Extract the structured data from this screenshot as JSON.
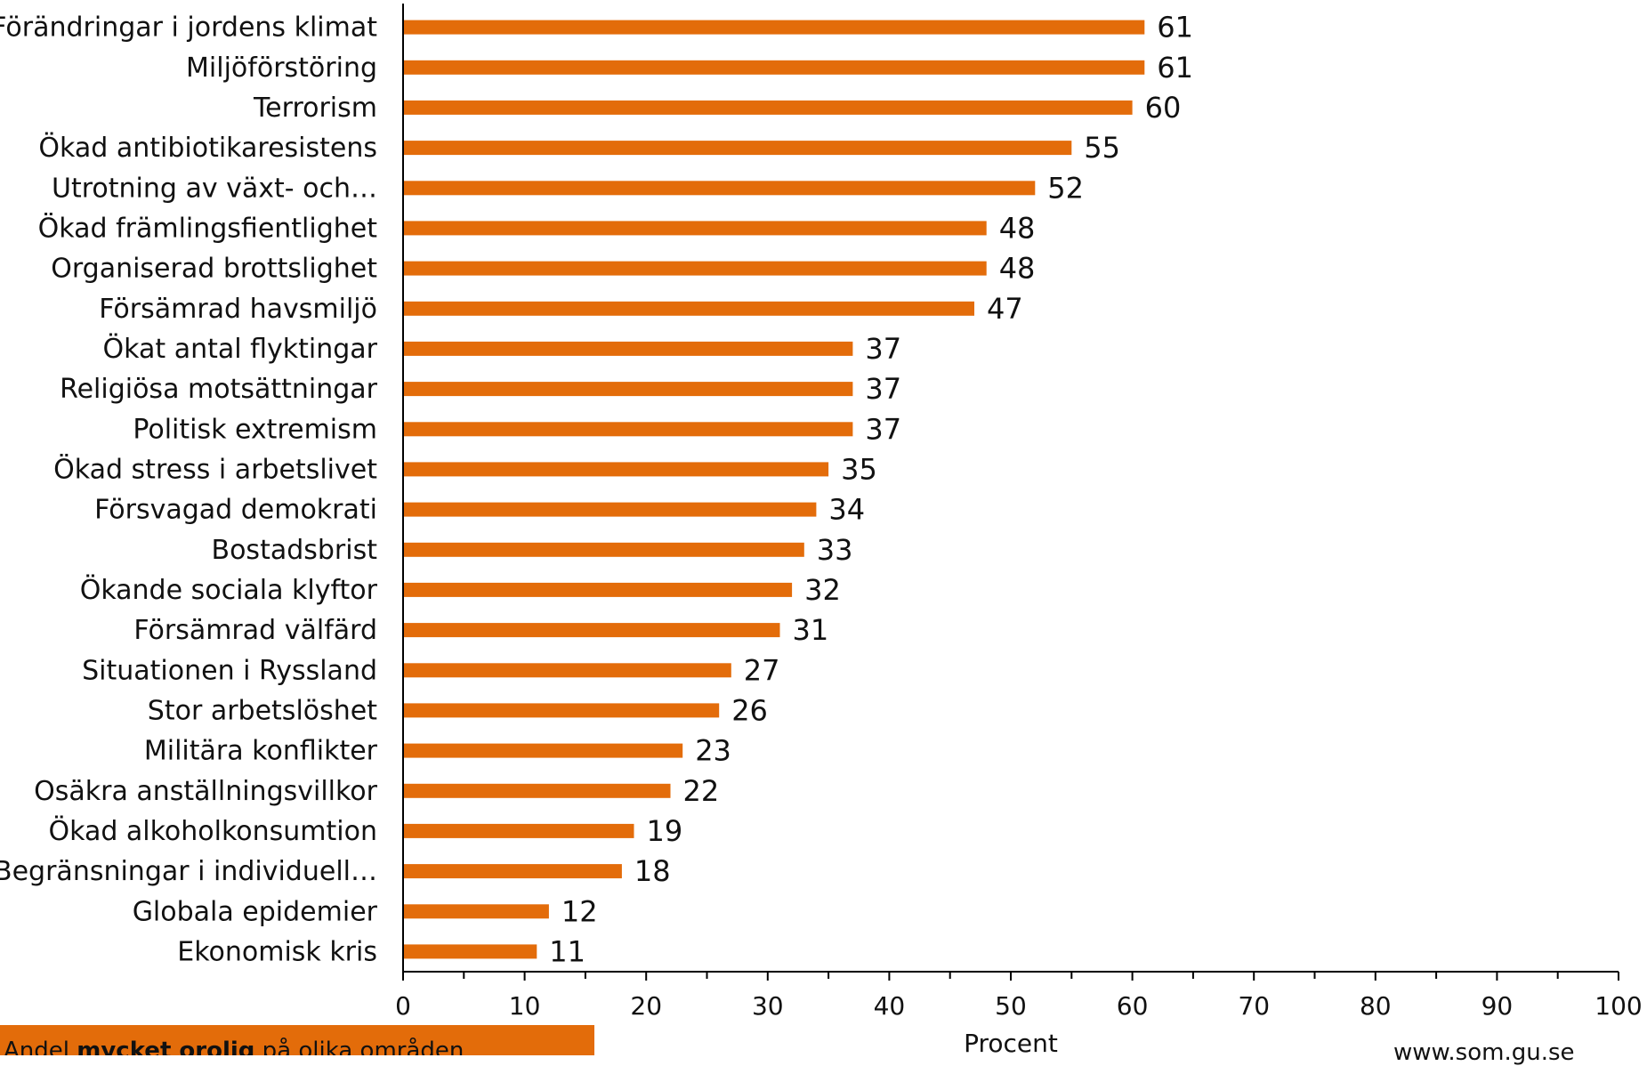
{
  "chart_data": {
    "type": "bar",
    "orientation": "horizontal",
    "categories": [
      "Förändringar i jordens klimat",
      "Miljöförstöring",
      "Terrorism",
      "Ökad antibiotikaresistens",
      "Utrotning av  växt- och…",
      "Ökad främlingsfientlighet",
      "Organiserad brottslighet",
      "Försämrad havsmiljö",
      "Ökat antal flyktingar",
      "Religiösa motsättningar",
      "Politisk extremism",
      "Ökad stress i arbetslivet",
      "Försvagad demokrati",
      "Bostadsbrist",
      "Ökande sociala klyftor",
      "Försämrad välfärd",
      "Situationen i Ryssland",
      "Stor arbetslöshet",
      "Militära konflikter",
      "Osäkra anställningsvillkor",
      "Ökad alkoholkonsumtion",
      "Begränsningar i individuell…",
      "Globala epidemier",
      "Ekonomisk kris"
    ],
    "values": [
      61,
      61,
      60,
      55,
      52,
      48,
      48,
      47,
      37,
      37,
      37,
      35,
      34,
      33,
      32,
      31,
      27,
      26,
      23,
      22,
      19,
      18,
      12,
      11
    ],
    "xlabel": "Procent",
    "xlim": [
      0,
      100
    ],
    "xticks": [
      "0",
      "10",
      "20",
      "30",
      "40",
      "50",
      "60",
      "70",
      "80",
      "90",
      "100"
    ],
    "grid": false,
    "legend": "none",
    "bar_color": "#e36c0a"
  },
  "footer": {
    "prefix": "Andel ",
    "emphasis": "mycket orolig",
    "suffix": " på olika områden"
  },
  "source": "www.som.gu.se"
}
